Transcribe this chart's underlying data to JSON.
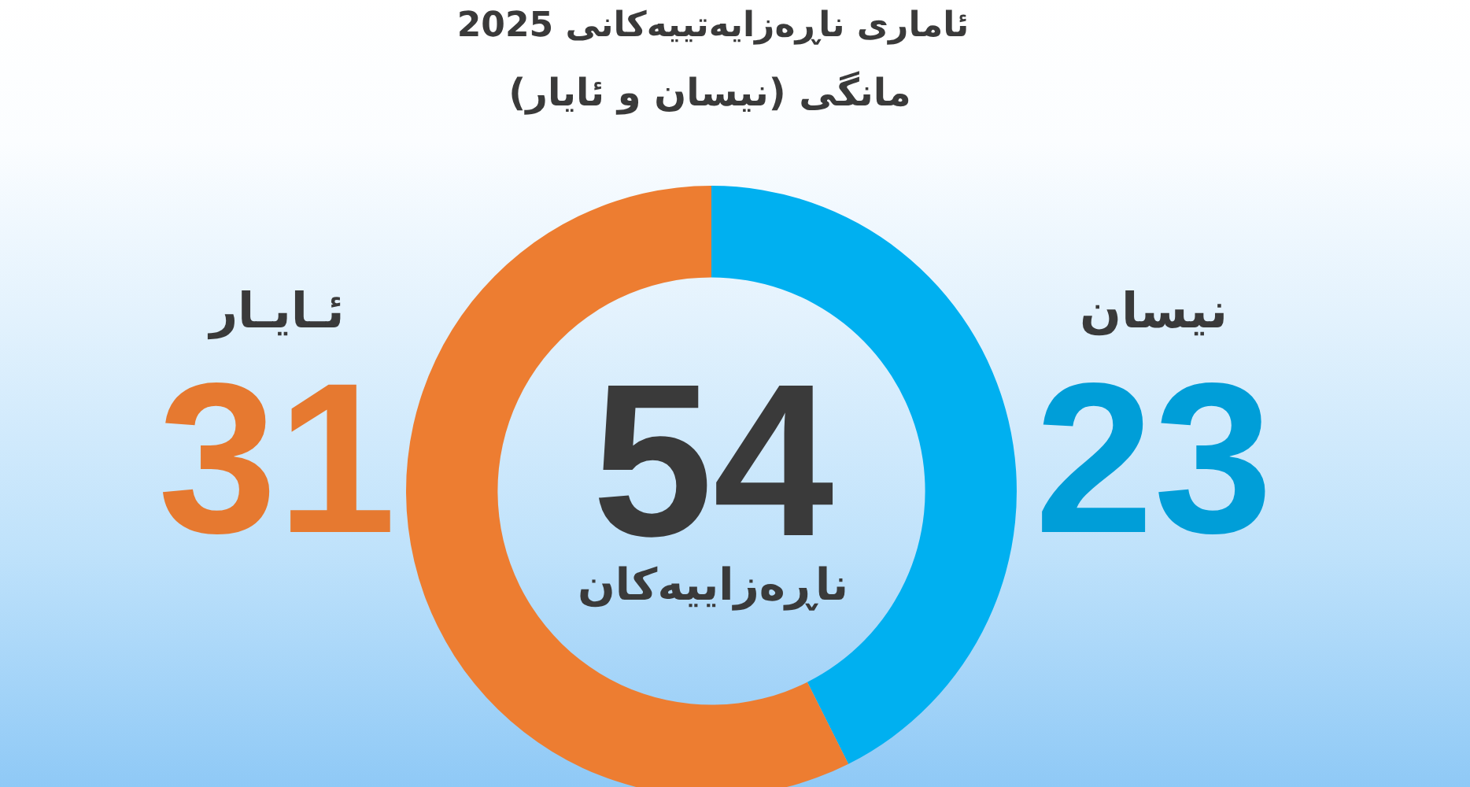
{
  "chart_data": {
    "type": "donut",
    "title": "ئاماری ناڕەزایەتییەکانی 2025",
    "subtitle": "مانگی (نیسان و ئایار)",
    "categories": [
      "نیسان",
      "ئـایـار"
    ],
    "values": [
      23,
      31
    ],
    "colors": [
      "#00b0f0",
      "#ed7d31"
    ],
    "data_labels": true,
    "annotations": [
      "54",
      "ناڕەزاییەکان"
    ]
  }
}
